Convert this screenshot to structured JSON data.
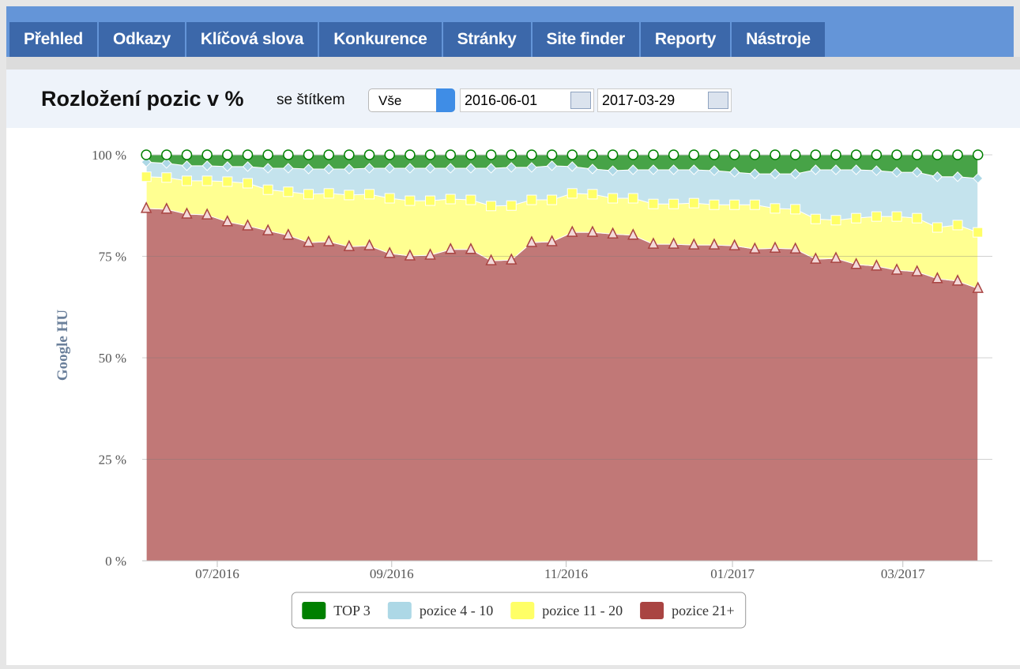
{
  "nav": {
    "tabs": [
      "Přehled",
      "Odkazy",
      "Klíčová slova",
      "Konkurence",
      "Stránky",
      "Site finder",
      "Reporty",
      "Nástroje"
    ]
  },
  "header": {
    "title": "Rozložení pozic v %",
    "label": "se štítkem",
    "select": "Vše",
    "date_from": "2016-06-01",
    "date_to": "2017-03-29"
  },
  "chart_data": {
    "type": "stacked_area",
    "y_label": "Google HU",
    "categories": [
      null,
      null,
      null,
      null,
      null,
      null,
      null,
      null,
      null,
      null,
      null,
      null,
      null,
      null,
      null,
      null,
      null,
      null,
      null,
      null,
      null,
      null,
      null,
      null,
      null,
      null,
      null,
      null,
      null,
      null,
      null,
      null,
      null,
      null,
      null,
      null,
      null,
      null,
      null,
      null,
      null,
      null
    ],
    "xlim": [
      -0.2,
      41.4
    ],
    "xticks": [
      {
        "value": 3.5,
        "label": "07/2016"
      },
      {
        "value": 12.1,
        "label": "09/2016"
      },
      {
        "value": 20.7,
        "label": "11/2016"
      },
      {
        "value": 28.9,
        "label": "01/2017"
      },
      {
        "value": 37.3,
        "label": "03/2017"
      }
    ],
    "ylim": [
      0,
      100
    ],
    "yticks": [
      {
        "value": 0,
        "label": "0 %"
      },
      {
        "value": 25,
        "label": "25 %"
      },
      {
        "value": 50,
        "label": "50 %"
      },
      {
        "value": 75,
        "label": "75 %"
      },
      {
        "value": 100,
        "label": "100 %"
      }
    ],
    "grid": true,
    "legend": "bottom",
    "series": [
      {
        "name": "TOP 3",
        "color": "#008000",
        "marker": "circle",
        "values": [
          1.8,
          2.1,
          2.7,
          2.7,
          2.9,
          2.9,
          3.3,
          3.3,
          3.5,
          3.5,
          3.5,
          3.3,
          3.3,
          3.3,
          3.3,
          3.3,
          3.3,
          3.3,
          3.1,
          3.1,
          2.7,
          2.9,
          3.5,
          3.9,
          3.7,
          3.7,
          3.7,
          3.7,
          3.9,
          4.3,
          4.7,
          4.7,
          4.7,
          3.7,
          3.7,
          3.7,
          3.9,
          4.3,
          4.3,
          5.4,
          5.4,
          5.8
        ]
      },
      {
        "name": "pozice 4 - 10",
        "color": "#add8e6",
        "marker": "diamond",
        "values": [
          3.6,
          3.5,
          3.7,
          3.7,
          3.7,
          4.1,
          5.3,
          5.8,
          6.2,
          6.0,
          6.4,
          6.4,
          7.4,
          8.0,
          8.0,
          7.6,
          7.8,
          9.3,
          9.4,
          8.0,
          8.4,
          6.6,
          6.2,
          6.8,
          7.0,
          8.4,
          8.4,
          8.2,
          8.4,
          8.0,
          7.6,
          8.5,
          8.7,
          12.1,
          12.4,
          11.9,
          11.3,
          10.9,
          11.3,
          12.5,
          11.9,
          13.3
        ]
      },
      {
        "name": "pozice 11 - 20",
        "color": "#ffff66",
        "marker": "square",
        "values": [
          7.8,
          7.8,
          8.2,
          8.4,
          9.9,
          10.5,
          10.1,
          10.7,
          11.9,
          11.9,
          12.7,
          12.7,
          13.6,
          13.6,
          13.4,
          12.4,
          12.2,
          13.5,
          13.4,
          10.5,
          10.3,
          9.6,
          9.4,
          8.8,
          9.1,
          9.9,
          9.9,
          10.3,
          9.9,
          10.1,
          10.9,
          9.8,
          9.8,
          9.9,
          9.4,
          11.4,
          12.2,
          13.2,
          13.2,
          12.6,
          13.8,
          13.8
        ]
      },
      {
        "name": "pozice 21+",
        "color": "#a94442",
        "marker": "triangle",
        "values": [
          86.8,
          86.6,
          85.4,
          85.2,
          83.5,
          82.5,
          81.3,
          80.2,
          78.4,
          78.6,
          77.4,
          77.6,
          75.7,
          75.1,
          75.3,
          76.7,
          76.7,
          73.9,
          74.1,
          78.4,
          78.6,
          80.9,
          80.9,
          80.5,
          80.2,
          78.0,
          78.0,
          77.8,
          77.8,
          77.6,
          76.8,
          77.0,
          76.8,
          74.3,
          74.5,
          73.0,
          72.6,
          71.6,
          71.2,
          69.5,
          68.9,
          67.1
        ]
      }
    ]
  }
}
